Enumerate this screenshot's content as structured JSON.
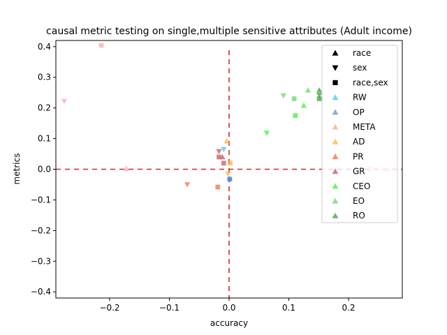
{
  "chart_data": {
    "type": "scatter",
    "title": "causal metric testing on single,multiple sensitive attributes (Adult income)",
    "xlabel": "accuracy",
    "ylabel": "metrics",
    "xlim": [
      -0.29,
      0.29
    ],
    "ylim": [
      -0.42,
      0.42
    ],
    "x_ticks": [
      -0.2,
      -0.1,
      0.0,
      0.1,
      0.2
    ],
    "x_tick_labels": [
      "−0.2",
      "−0.1",
      "0.0",
      "0.1",
      "0.2"
    ],
    "y_ticks": [
      -0.4,
      -0.3,
      -0.2,
      -0.1,
      0.0,
      0.1,
      0.2,
      0.3,
      0.4
    ],
    "y_tick_labels": [
      "−0.4",
      "−0.3",
      "−0.2",
      "−0.1",
      "0.0",
      "0.1",
      "0.2",
      "0.3",
      "0.4"
    ],
    "grid": false,
    "legend_position": "top-right",
    "reference_lines": [
      {
        "orientation": "horizontal",
        "value": 0.0,
        "color": "#d62728",
        "style": "dashed"
      },
      {
        "orientation": "vertical",
        "value": 0.0,
        "color": "#d62728",
        "style": "dashed"
      }
    ],
    "marker_legend": [
      {
        "marker": "triangle-up",
        "label": "race"
      },
      {
        "marker": "triangle-down",
        "label": "sex"
      },
      {
        "marker": "square",
        "label": "race,sex"
      }
    ],
    "series": [
      {
        "name": "RW",
        "color": "#36c6f0",
        "points": [
          {
            "x": -0.009,
            "y": 0.065,
            "marker": "triangle-down"
          }
        ]
      },
      {
        "name": "OP",
        "color": "#5b8ec9",
        "points": [
          {
            "x": 0.001,
            "y": -0.03,
            "marker": "triangle-up"
          },
          {
            "x": 0.001,
            "y": -0.035,
            "marker": "triangle-down"
          },
          {
            "x": 0.001,
            "y": -0.032,
            "marker": "square"
          }
        ]
      },
      {
        "name": "META",
        "color": "#f4a6a0",
        "points": [
          {
            "x": -0.172,
            "y": 0.002,
            "marker": "triangle-up"
          },
          {
            "x": -0.276,
            "y": 0.222,
            "marker": "triangle-down"
          },
          {
            "x": -0.214,
            "y": 0.404,
            "marker": "square"
          },
          {
            "x": 0.265,
            "y": 0.0,
            "marker": "triangle-up"
          },
          {
            "x": 0.235,
            "y": 0.0,
            "marker": "square"
          }
        ]
      },
      {
        "name": "AD",
        "color": "#fbb13c",
        "points": [
          {
            "x": -0.004,
            "y": 0.092,
            "marker": "triangle-up"
          },
          {
            "x": -0.002,
            "y": -0.015,
            "marker": "triangle-down"
          },
          {
            "x": 0.002,
            "y": 0.02,
            "marker": "square"
          }
        ]
      },
      {
        "name": "PR",
        "color": "#f5663a",
        "points": [
          {
            "x": -0.07,
            "y": -0.05,
            "marker": "triangle-down"
          },
          {
            "x": -0.019,
            "y": -0.058,
            "marker": "square"
          }
        ]
      },
      {
        "name": "GR",
        "color": "#c1505a",
        "points": [
          {
            "x": -0.011,
            "y": 0.04,
            "marker": "triangle-up"
          },
          {
            "x": -0.017,
            "y": 0.058,
            "marker": "triangle-down"
          },
          {
            "x": -0.017,
            "y": 0.04,
            "marker": "square"
          },
          {
            "x": -0.009,
            "y": 0.02,
            "marker": "square"
          }
        ]
      },
      {
        "name": "CEO",
        "color": "#33ee33",
        "points": [
          {
            "x": 0.125,
            "y": 0.208,
            "marker": "triangle-up"
          },
          {
            "x": 0.063,
            "y": 0.118,
            "marker": "triangle-down"
          },
          {
            "x": 0.111,
            "y": 0.175,
            "marker": "square"
          }
        ]
      },
      {
        "name": "EO",
        "color": "#5fd65f",
        "points": [
          {
            "x": 0.132,
            "y": 0.258,
            "marker": "triangle-up"
          },
          {
            "x": 0.091,
            "y": 0.24,
            "marker": "triangle-down"
          },
          {
            "x": 0.109,
            "y": 0.23,
            "marker": "square"
          }
        ]
      },
      {
        "name": "RO",
        "color": "#2e9a2e",
        "points": [
          {
            "x": 0.151,
            "y": 0.258,
            "marker": "triangle-up"
          },
          {
            "x": 0.151,
            "y": 0.242,
            "marker": "triangle-down"
          },
          {
            "x": 0.151,
            "y": 0.23,
            "marker": "square"
          }
        ]
      }
    ]
  }
}
